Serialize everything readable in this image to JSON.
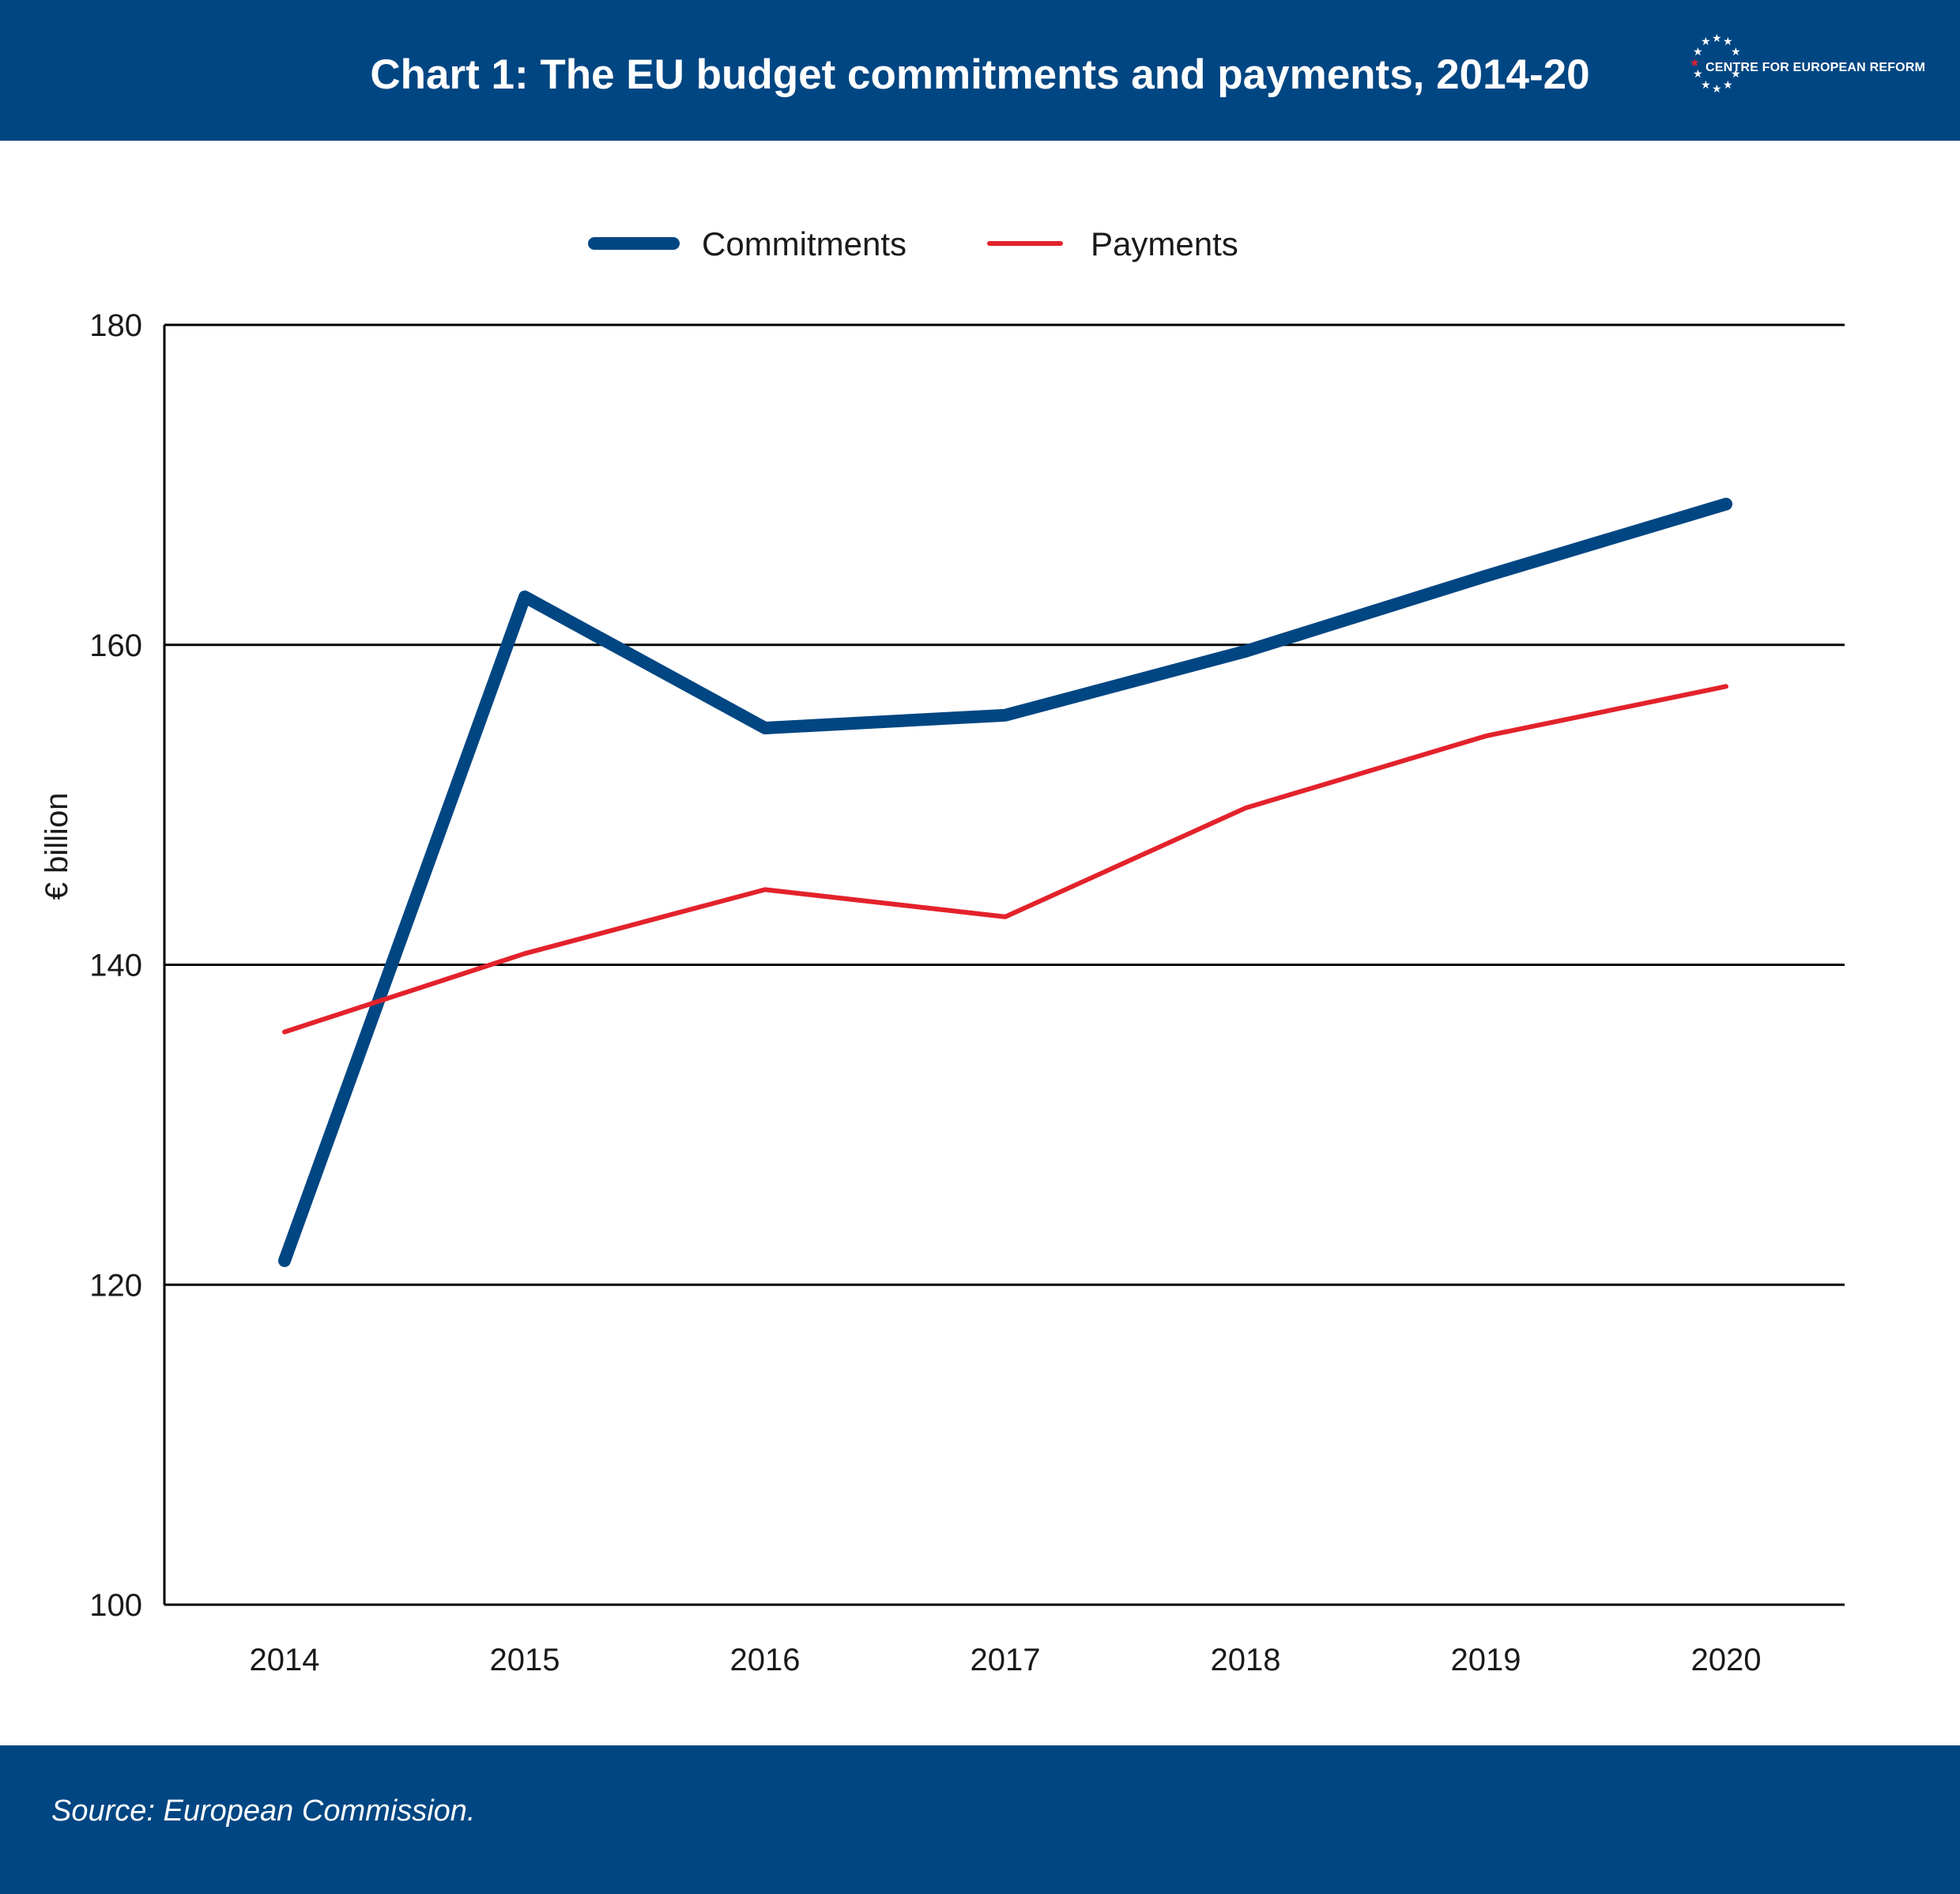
{
  "header": {
    "title": "Chart 1: The EU budget commitments and payments, 2014-20",
    "logo_text": "CENTRE FOR EUROPEAN REFORM",
    "background_color": "#004682"
  },
  "footer": {
    "source": "Source: European Commission."
  },
  "chart_data": {
    "type": "line",
    "title": "Chart 1: The EU budget commitments and payments, 2014-20",
    "xlabel": "",
    "ylabel": "€ billion",
    "categories": [
      "2014",
      "2015",
      "2016",
      "2017",
      "2018",
      "2019",
      "2020"
    ],
    "ylim": [
      100,
      180
    ],
    "yticks": [
      100,
      120,
      140,
      160,
      180
    ],
    "grid": true,
    "legend_position": "top-center",
    "series": [
      {
        "name": "Commitments",
        "color": "#004682",
        "values": [
          121.5,
          163,
          154.8,
          155.6,
          159.6,
          164.3,
          168.8
        ]
      },
      {
        "name": "Payments",
        "color": "#e3222b",
        "values": [
          135.8,
          140.7,
          144.7,
          143,
          149.8,
          154.3,
          157.4
        ]
      }
    ]
  }
}
